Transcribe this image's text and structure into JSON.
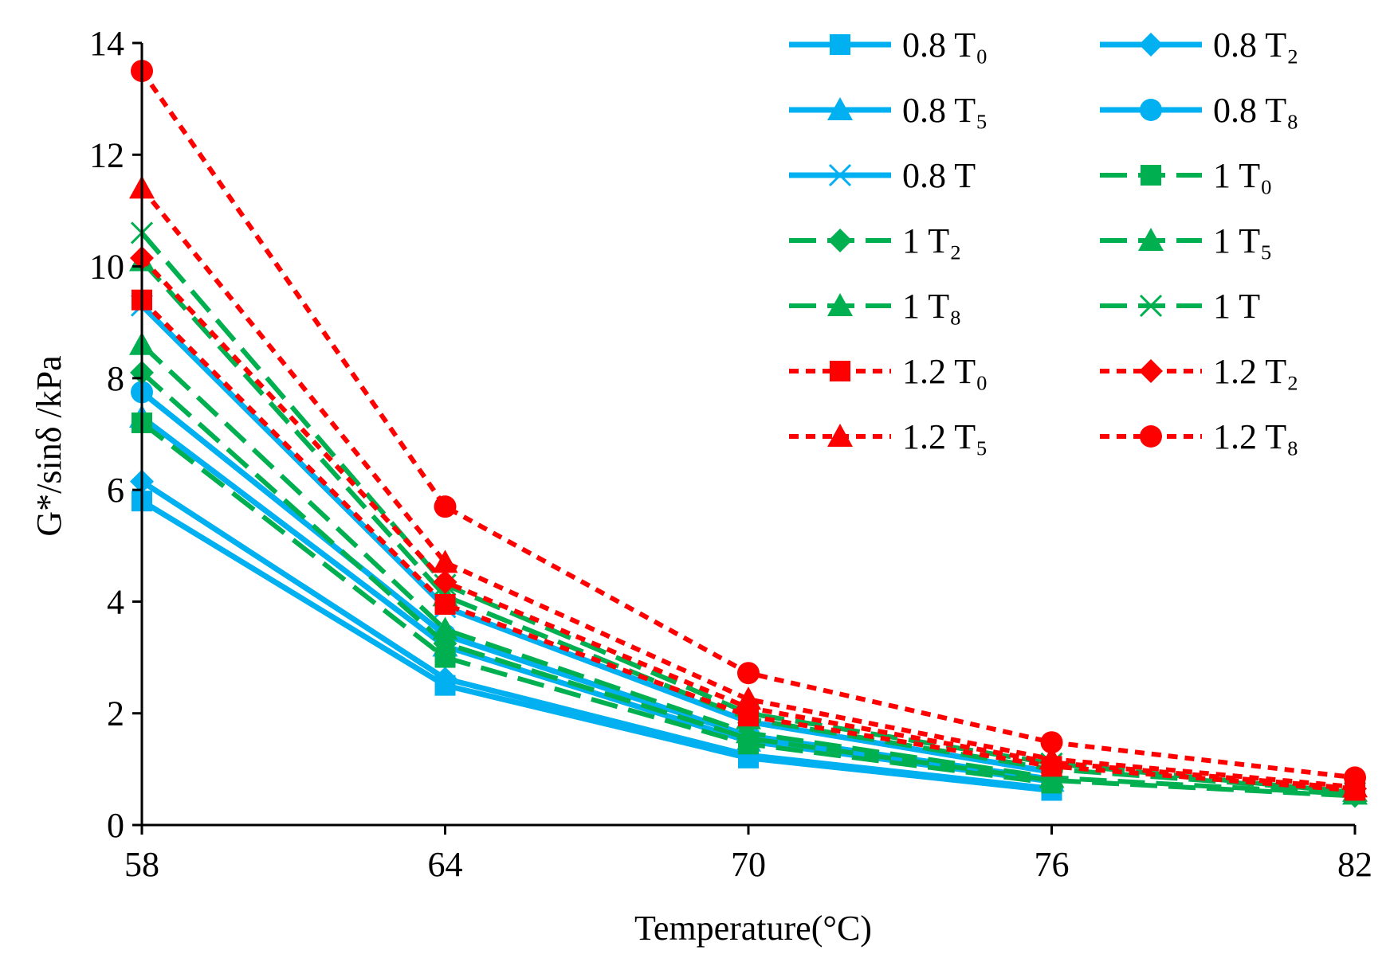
{
  "chart_data": {
    "type": "line",
    "title": "",
    "xlabel": "Temperature(°C)",
    "ylabel": "G*/sinδ /kPa",
    "x": [
      58,
      64,
      70,
      76,
      82
    ],
    "x_tick_labels": [
      "58",
      "64",
      "70",
      "76",
      "82"
    ],
    "ylim": [
      0,
      14
    ],
    "y_ticks": [
      0,
      2,
      4,
      6,
      8,
      10,
      12,
      14
    ],
    "y_tick_labels": [
      "0",
      "2",
      "4",
      "6",
      "8",
      "10",
      "12",
      "14"
    ],
    "grid": false,
    "legend_position": "top-right",
    "series": [
      {
        "name": "0.8 T₀",
        "color": "#00B0F0",
        "dash": "solid",
        "marker": "square",
        "values": [
          5.8,
          2.5,
          1.2,
          0.62,
          null
        ]
      },
      {
        "name": "0.8 T₂",
        "color": "#00B0F0",
        "dash": "solid",
        "marker": "diamond",
        "values": [
          6.15,
          2.62,
          1.25,
          0.65,
          null
        ]
      },
      {
        "name": "0.8 T₅",
        "color": "#00B0F0",
        "dash": "solid",
        "marker": "triangle",
        "values": [
          7.3,
          3.2,
          1.5,
          0.78,
          null
        ]
      },
      {
        "name": "0.8 T₈",
        "color": "#00B0F0",
        "dash": "solid",
        "marker": "circle",
        "values": [
          7.75,
          3.4,
          1.6,
          0.82,
          null
        ]
      },
      {
        "name": "0.8 T",
        "color": "#00B0F0",
        "dash": "solid",
        "marker": "x",
        "values": [
          9.3,
          3.9,
          1.85,
          0.95,
          null
        ]
      },
      {
        "name": "1 T₀",
        "color": "#00B050",
        "dash": "dash",
        "marker": "square",
        "values": [
          7.2,
          3.0,
          1.45,
          0.75,
          null
        ]
      },
      {
        "name": "1 T₂",
        "color": "#00B050",
        "dash": "dash",
        "marker": "diamond",
        "values": [
          8.1,
          3.25,
          1.55,
          0.8,
          0.52
        ]
      },
      {
        "name": "1 T₅",
        "color": "#00B050",
        "dash": "dash",
        "marker": "triangle",
        "values": [
          8.6,
          3.5,
          1.65,
          0.85,
          0.55
        ]
      },
      {
        "name": "1 T₈",
        "color": "#00B050",
        "dash": "dash",
        "marker": "triangle",
        "values": [
          10.1,
          4.1,
          1.9,
          1.0,
          0.6
        ]
      },
      {
        "name": "1 T",
        "color": "#00B050",
        "dash": "dash",
        "marker": "x",
        "values": [
          10.6,
          4.3,
          2.0,
          1.1,
          0.58
        ]
      },
      {
        "name": "1.2 T₀",
        "color": "#FF0000",
        "dash": "dot",
        "marker": "square",
        "values": [
          9.4,
          3.95,
          1.95,
          1.05,
          0.62
        ]
      },
      {
        "name": "1.2 T₂",
        "color": "#FF0000",
        "dash": "dot",
        "marker": "diamond",
        "values": [
          10.15,
          4.35,
          2.1,
          1.12,
          0.65
        ]
      },
      {
        "name": "1.2 T₅",
        "color": "#FF0000",
        "dash": "dot",
        "marker": "triangle",
        "values": [
          11.4,
          4.7,
          2.25,
          1.18,
          0.68
        ]
      },
      {
        "name": "1.2 T₈",
        "color": "#FF0000",
        "dash": "dot",
        "marker": "circle",
        "values": [
          13.5,
          5.7,
          2.72,
          1.48,
          0.85
        ]
      }
    ]
  }
}
